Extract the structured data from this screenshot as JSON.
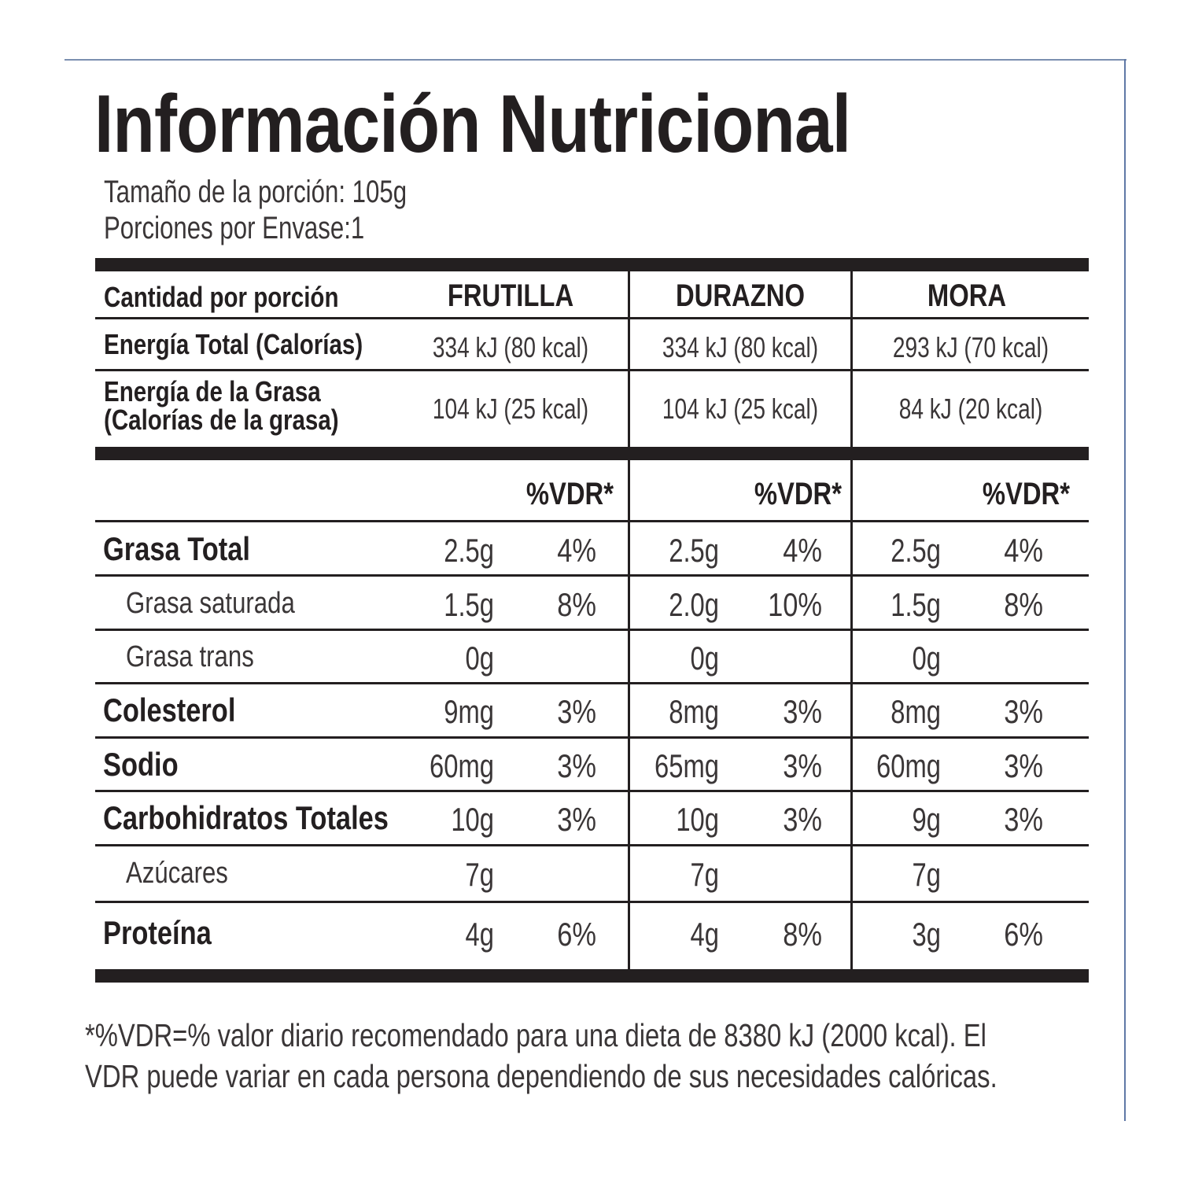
{
  "title": "Información Nutricional",
  "serving_size": "Tamaño de la porción: 105g",
  "servings_per_container": "Porciones por Envase:1",
  "header": {
    "amount_label": "Cantidad por porción",
    "flavors": [
      "FRUTILLA",
      "DURAZNO",
      "MORA"
    ]
  },
  "energy_rows": [
    {
      "label": "Energía Total (Calorías)",
      "values": [
        "334 kJ (80 kcal)",
        "334 kJ (80 kcal)",
        "293 kJ (70 kcal)"
      ]
    },
    {
      "label_line1": "Energía de la Grasa",
      "label_line2": "(Calorías de la grasa)",
      "values": [
        "104 kJ (25 kcal)",
        "104 kJ (25 kcal)",
        "84 kJ (20 kcal)"
      ]
    }
  ],
  "vdr_header": "%VDR*",
  "nutrient_rows": [
    {
      "label": "Grasa Total",
      "style": "bold",
      "cells": [
        [
          "2.5g",
          "4%"
        ],
        [
          "2.5g",
          "4%"
        ],
        [
          "2.5g",
          "4%"
        ]
      ]
    },
    {
      "label": "Grasa saturada",
      "style": "sub",
      "cells": [
        [
          "1.5g",
          "8%"
        ],
        [
          "2.0g",
          "10%"
        ],
        [
          "1.5g",
          "8%"
        ]
      ]
    },
    {
      "label": "Grasa trans",
      "style": "sub",
      "cells": [
        [
          "0g",
          ""
        ],
        [
          "0g",
          ""
        ],
        [
          "0g",
          ""
        ]
      ]
    },
    {
      "label": "Colesterol",
      "style": "bold",
      "cells": [
        [
          "9mg",
          "3%"
        ],
        [
          "8mg",
          "3%"
        ],
        [
          "8mg",
          "3%"
        ]
      ]
    },
    {
      "label": "Sodio",
      "style": "bold",
      "cells": [
        [
          "60mg",
          "3%"
        ],
        [
          "65mg",
          "3%"
        ],
        [
          "60mg",
          "3%"
        ]
      ]
    },
    {
      "label": "Carbohidratos Totales",
      "style": "bold",
      "cells": [
        [
          "10g",
          "3%"
        ],
        [
          "10g",
          "3%"
        ],
        [
          "9g",
          "3%"
        ]
      ]
    },
    {
      "label": "Azúcares",
      "style": "sub",
      "cells": [
        [
          "7g",
          ""
        ],
        [
          "7g",
          ""
        ],
        [
          "7g",
          ""
        ]
      ]
    },
    {
      "label": "Proteína",
      "style": "bold",
      "cells": [
        [
          "4g",
          "6%"
        ],
        [
          "4g",
          "8%"
        ],
        [
          "3g",
          "6%"
        ]
      ]
    }
  ],
  "footnote_line1": "*%VDR=% valor diario recomendado para una dieta de 8380 kJ (2000 kcal). El",
  "footnote_line2": "VDR puede variar en cada persona dependiendo de sus necesidades calóricas."
}
